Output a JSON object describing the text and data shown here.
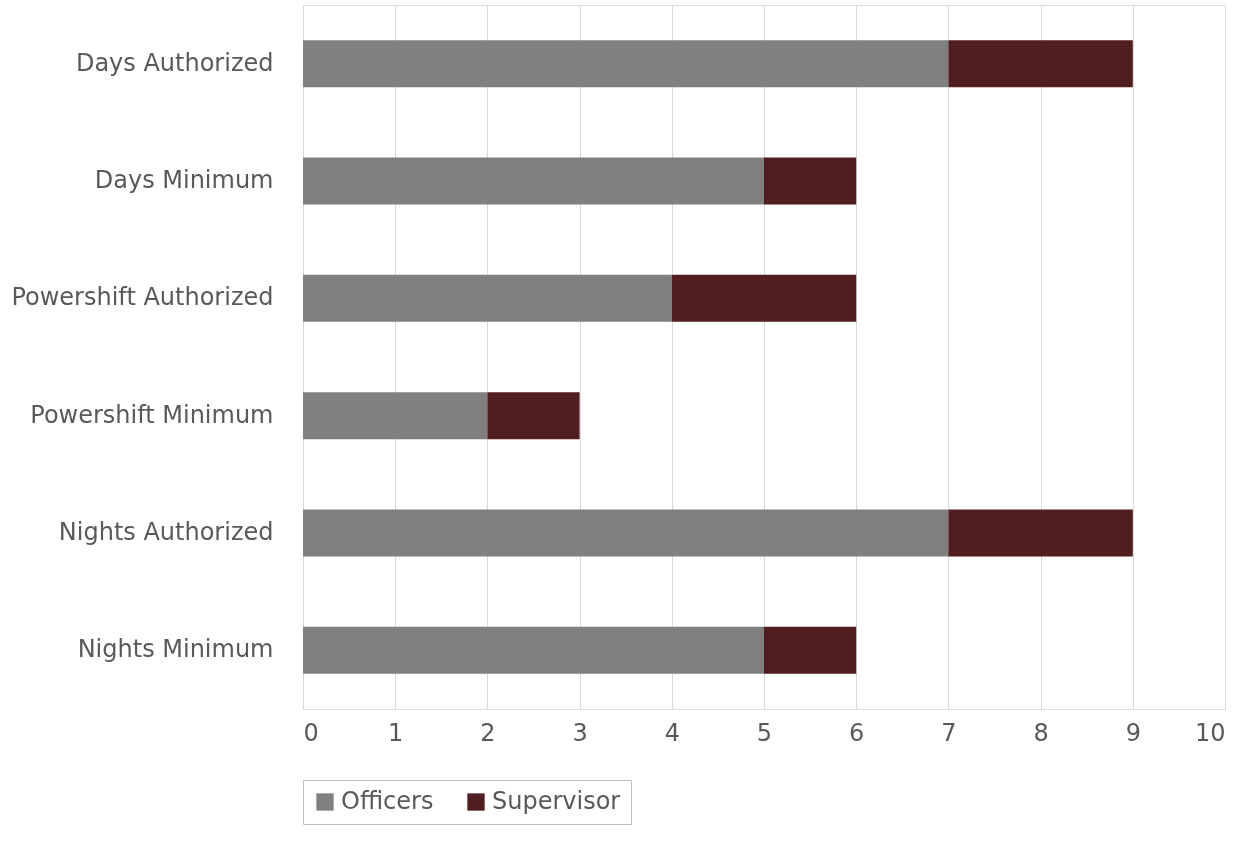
{
  "chart_data": {
    "type": "bar",
    "orientation": "horizontal",
    "stacked": true,
    "categories": [
      "Days Authorized",
      "Days Minimum",
      "Powershift Authorized",
      "Powershift Minimum",
      "Nights Authorized",
      "Nights Minimum"
    ],
    "series": [
      {
        "name": "Officers",
        "color": "#808080",
        "values": [
          7,
          5,
          4,
          2,
          7,
          5
        ]
      },
      {
        "name": "Supervisor",
        "color": "#501e20",
        "values": [
          2,
          1,
          2,
          1,
          2,
          1
        ]
      }
    ],
    "xlim": [
      0,
      10
    ],
    "xticks": [
      0,
      1,
      2,
      3,
      4,
      5,
      6,
      7,
      8,
      9,
      10
    ],
    "grid": "x",
    "legend": "bottom"
  }
}
